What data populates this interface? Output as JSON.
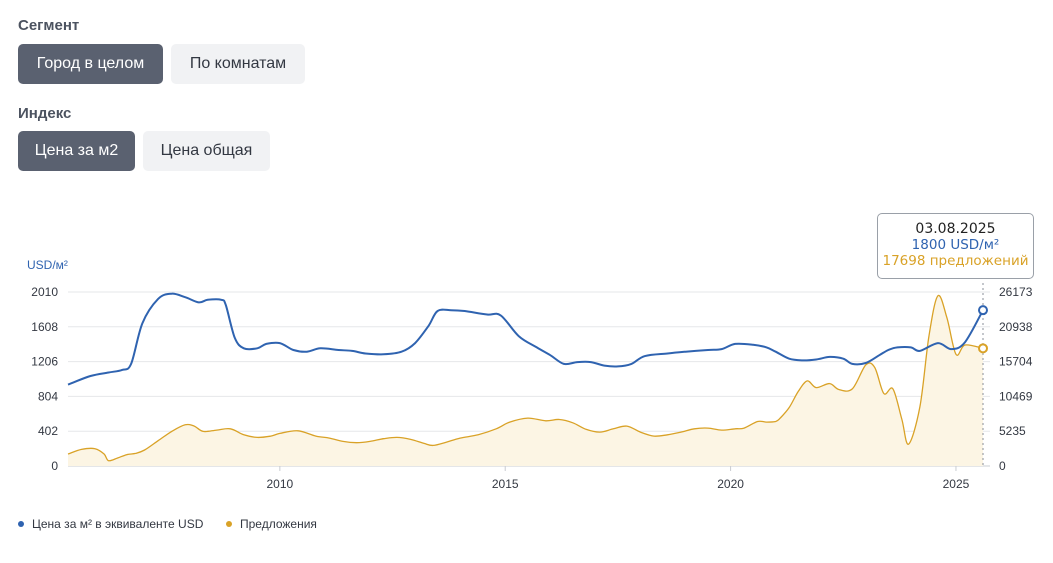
{
  "segment": {
    "label": "Сегмент",
    "options": [
      "Город в целом",
      "По комнатам"
    ],
    "selected": "Город в целом"
  },
  "index": {
    "label": "Индекс",
    "options": [
      "Цена за м2",
      "Цена общая"
    ],
    "selected": "Цена за м2"
  },
  "colors": {
    "price": "#2f63b0",
    "offers": "#d9a227",
    "offers_fill": "#fcf5e4",
    "active_button": "#5a6170"
  },
  "tooltip": {
    "date": "03.08.2025",
    "price": "1800 USD/м²",
    "offers": "17698 предложений"
  },
  "chart_data": {
    "type": "line",
    "y_unit": "USD/м²",
    "x_ticks": [
      "2010",
      "2015",
      "2020",
      "2025"
    ],
    "x_range": [
      2005.3,
      2025.6
    ],
    "y_left": {
      "ticks": [
        "2010",
        "1608",
        "1206",
        "804",
        "402",
        "0"
      ],
      "range": [
        0,
        2010
      ]
    },
    "y_right": {
      "ticks": [
        "26173",
        "20938",
        "15704",
        "10469",
        "5235",
        "0"
      ],
      "range": [
        0,
        26173
      ]
    },
    "grid": true,
    "legend_position": "bottom-left",
    "series": [
      {
        "name": "Цена за м² в эквиваленте USD",
        "axis": "left",
        "x": [
          2005.3,
          2005.8,
          2006.2,
          2006.5,
          2006.7,
          2006.95,
          2007.3,
          2007.6,
          2007.9,
          2008.2,
          2008.4,
          2008.7,
          2008.8,
          2009.0,
          2009.2,
          2009.5,
          2009.7,
          2010.0,
          2010.3,
          2010.6,
          2010.9,
          2011.3,
          2011.6,
          2011.9,
          2012.3,
          2012.7,
          2013.0,
          2013.3,
          2013.5,
          2013.8,
          2014.1,
          2014.6,
          2014.9,
          2015.3,
          2015.7,
          2016.0,
          2016.3,
          2016.6,
          2016.9,
          2017.2,
          2017.5,
          2017.8,
          2018.1,
          2018.6,
          2019.0,
          2019.5,
          2019.8,
          2020.1,
          2020.5,
          2020.8,
          2021.0,
          2021.3,
          2021.6,
          2021.9,
          2022.2,
          2022.5,
          2022.7,
          2023.0,
          2023.3,
          2023.5,
          2023.7,
          2024.0,
          2024.2,
          2024.6,
          2024.9,
          2025.2,
          2025.6
        ],
        "y": [
          940,
          1040,
          1080,
          1110,
          1180,
          1650,
          1930,
          1990,
          1950,
          1890,
          1920,
          1920,
          1860,
          1480,
          1360,
          1360,
          1410,
          1420,
          1340,
          1320,
          1360,
          1340,
          1330,
          1300,
          1290,
          1320,
          1420,
          1620,
          1790,
          1800,
          1790,
          1750,
          1740,
          1500,
          1370,
          1280,
          1180,
          1200,
          1200,
          1160,
          1150,
          1180,
          1270,
          1300,
          1320,
          1340,
          1350,
          1410,
          1400,
          1370,
          1320,
          1240,
          1220,
          1230,
          1260,
          1240,
          1180,
          1190,
          1280,
          1340,
          1370,
          1370,
          1330,
          1420,
          1350,
          1430,
          1800
        ]
      },
      {
        "name": "Предложения",
        "axis": "right",
        "x": [
          2005.3,
          2005.6,
          2005.9,
          2006.1,
          2006.2,
          2006.4,
          2006.6,
          2006.8,
          2007.0,
          2007.3,
          2007.6,
          2007.9,
          2008.1,
          2008.3,
          2008.6,
          2008.9,
          2009.2,
          2009.5,
          2009.8,
          2010.0,
          2010.4,
          2010.8,
          2011.1,
          2011.4,
          2011.7,
          2012.0,
          2012.3,
          2012.6,
          2012.9,
          2013.2,
          2013.4,
          2013.7,
          2014.0,
          2014.4,
          2014.8,
          2015.1,
          2015.5,
          2015.9,
          2016.2,
          2016.5,
          2016.8,
          2017.1,
          2017.4,
          2017.7,
          2018.0,
          2018.3,
          2018.6,
          2018.9,
          2019.2,
          2019.5,
          2019.8,
          2020.1,
          2020.3,
          2020.6,
          2020.8,
          2021.0,
          2021.1,
          2021.3,
          2021.5,
          2021.7,
          2021.9,
          2022.2,
          2022.4,
          2022.7,
          2023.0,
          2023.2,
          2023.4,
          2023.6,
          2023.8,
          2023.95,
          2024.2,
          2024.4,
          2024.6,
          2024.8,
          2025.0,
          2025.2,
          2025.6
        ],
        "y": [
          1800,
          2500,
          2600,
          1800,
          800,
          1200,
          1700,
          1900,
          2400,
          3800,
          5200,
          6200,
          6000,
          5200,
          5400,
          5600,
          4700,
          4300,
          4500,
          4900,
          5300,
          4500,
          4200,
          3700,
          3500,
          3700,
          4100,
          4300,
          4000,
          3400,
          3100,
          3600,
          4200,
          4700,
          5600,
          6600,
          7200,
          6800,
          7000,
          6500,
          5500,
          5100,
          5600,
          6000,
          5100,
          4500,
          4700,
          5100,
          5600,
          5700,
          5400,
          5600,
          5700,
          6700,
          6600,
          6700,
          7200,
          8800,
          11200,
          12800,
          11800,
          12400,
          11500,
          11600,
          15200,
          14800,
          10900,
          11600,
          7000,
          3300,
          8900,
          19500,
          25600,
          22300,
          16800,
          18200,
          17698
        ]
      }
    ]
  }
}
